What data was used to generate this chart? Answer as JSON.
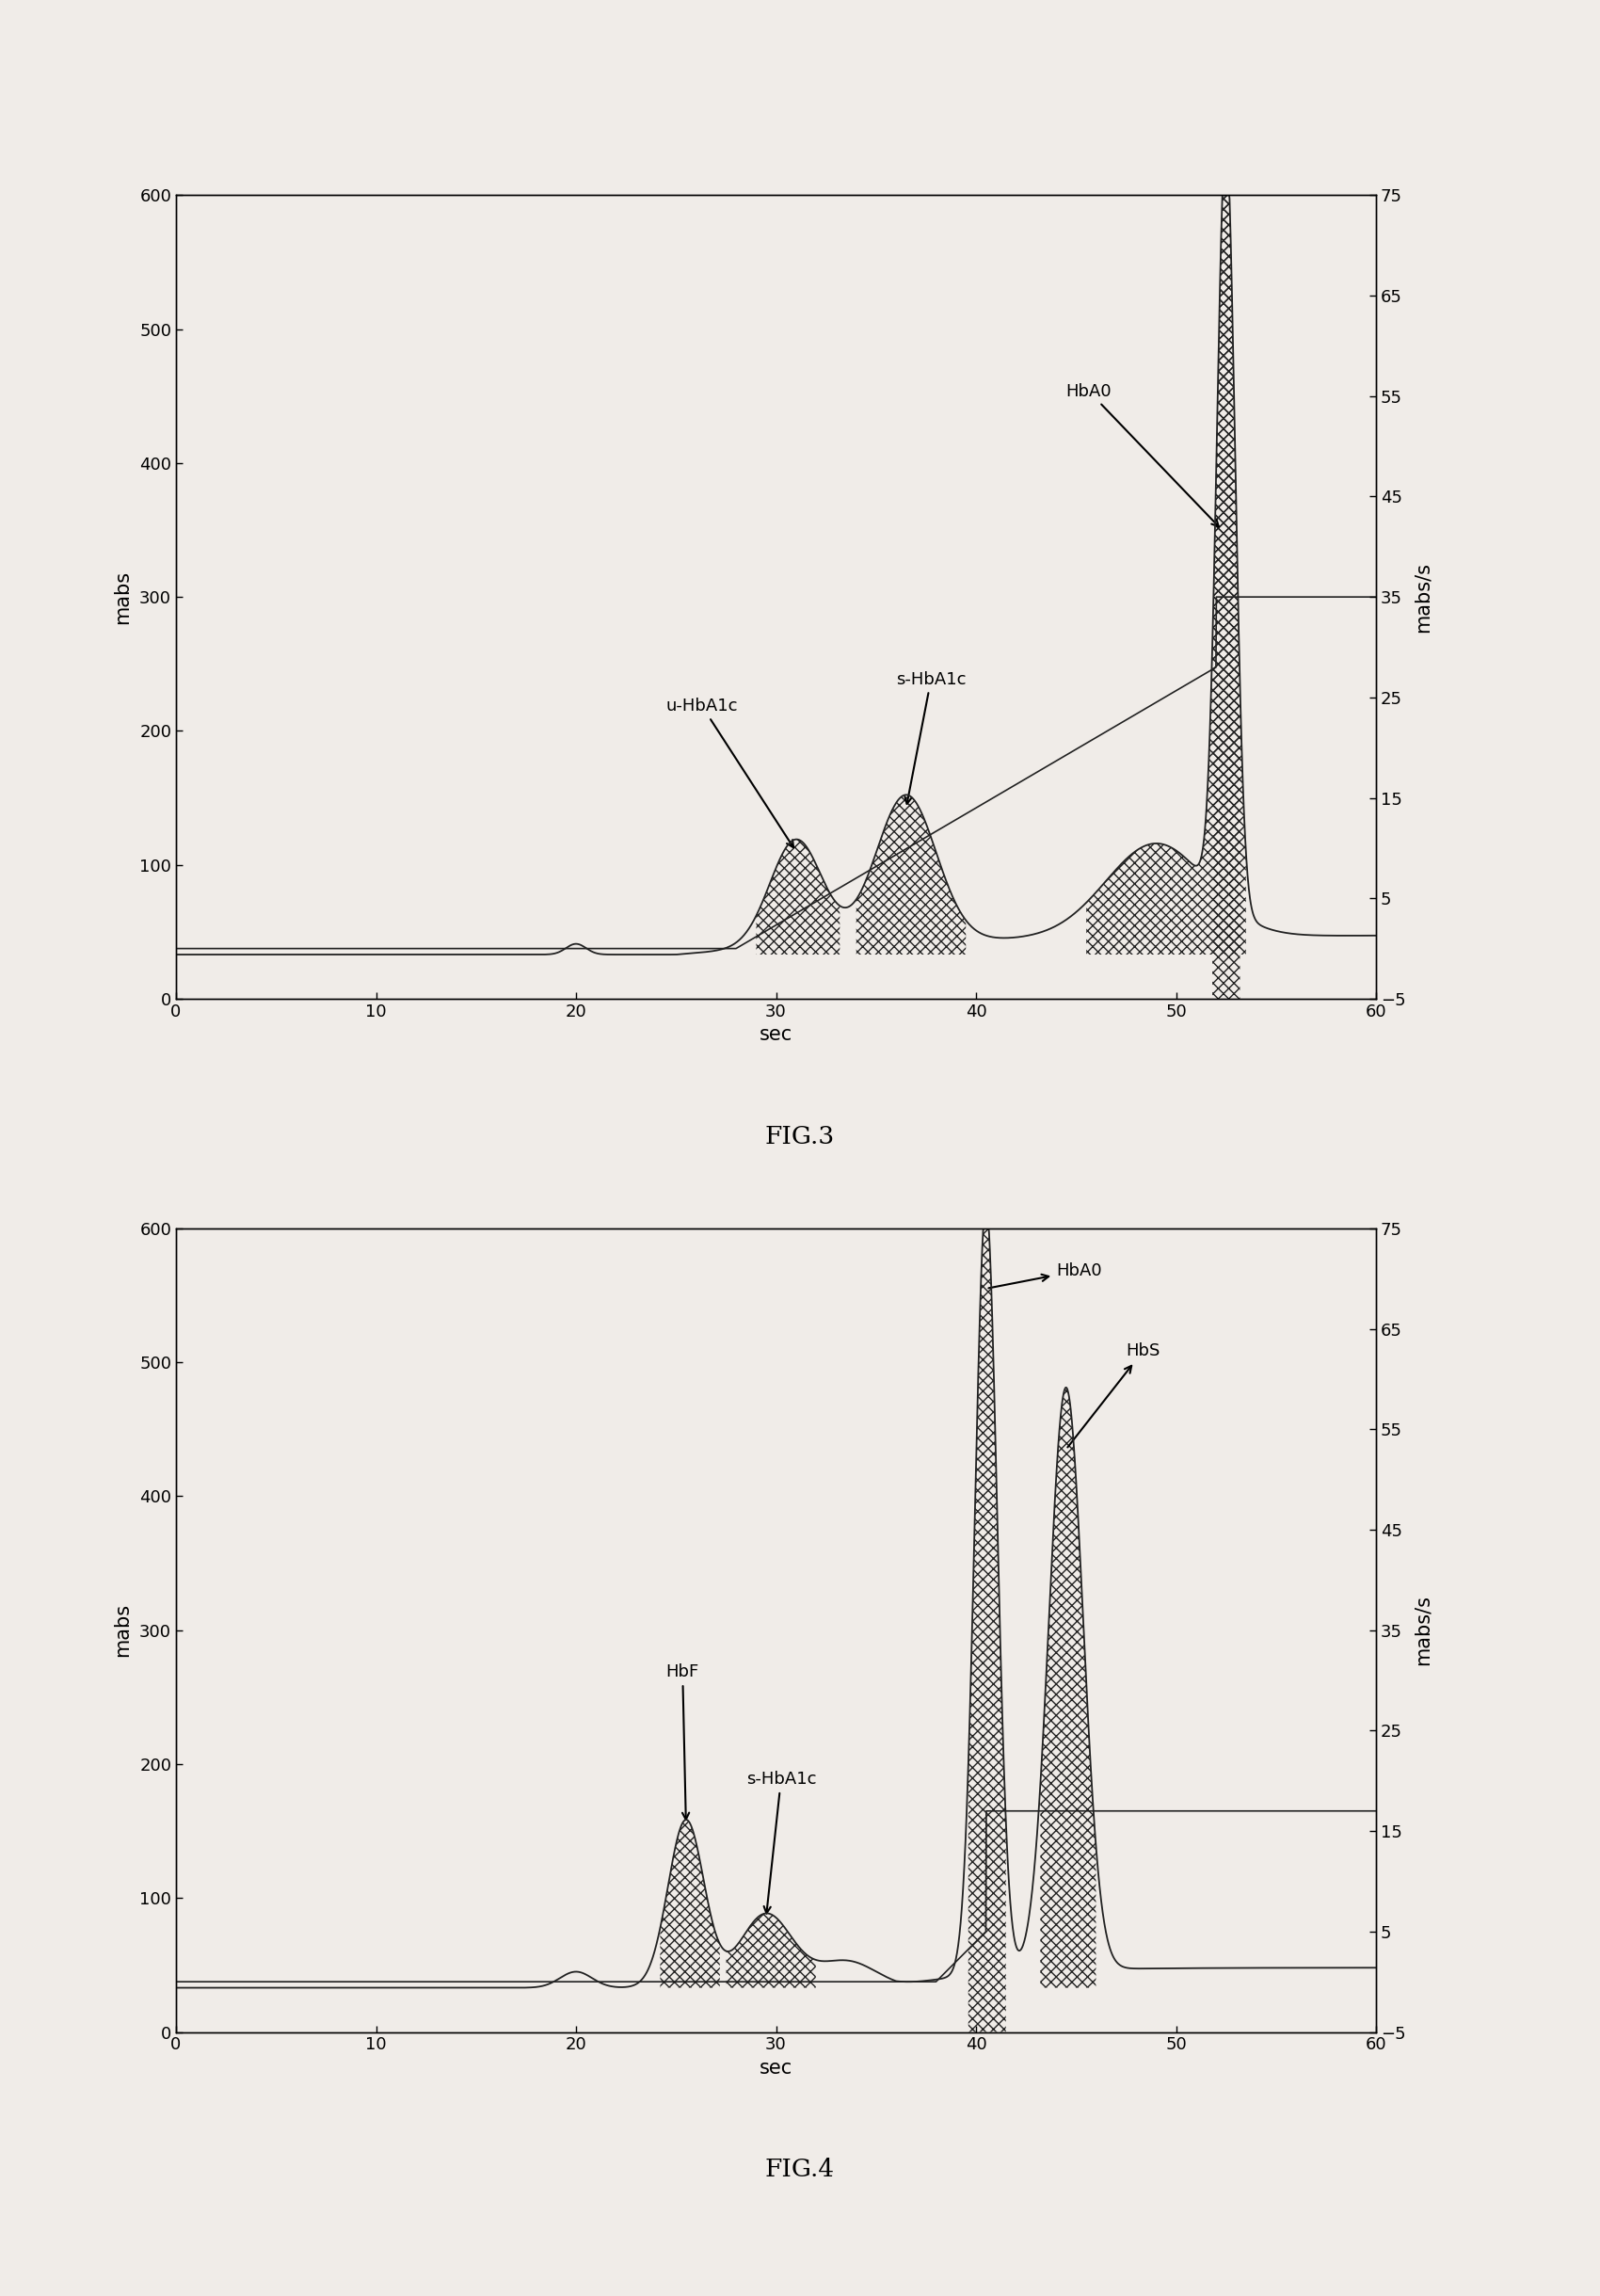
{
  "fig3": {
    "title": "FIG.3",
    "xlabel": "sec",
    "ylabel_left": "mabs",
    "ylabel_right": "mabs/s",
    "xlim": [
      0,
      60
    ],
    "ylim_left": [
      0,
      600
    ],
    "ylim_right": [
      -5,
      75
    ],
    "xticks": [
      0,
      10,
      20,
      30,
      40,
      50,
      60
    ],
    "yticks_left": [
      0,
      100,
      200,
      300,
      400,
      500,
      600
    ],
    "yticks_right": [
      -5,
      5,
      15,
      25,
      35,
      45,
      55,
      65,
      75
    ]
  },
  "fig4": {
    "title": "FIG.4",
    "xlabel": "sec",
    "ylabel_left": "mabs",
    "ylabel_right": "mabs/s",
    "xlim": [
      0,
      60
    ],
    "ylim_left": [
      0,
      600
    ],
    "ylim_right": [
      -5,
      75
    ],
    "xticks": [
      0,
      10,
      20,
      30,
      40,
      50,
      60
    ],
    "yticks_left": [
      0,
      100,
      200,
      300,
      400,
      500,
      600
    ],
    "yticks_right": [
      -5,
      5,
      15,
      25,
      35,
      45,
      55,
      65,
      75
    ]
  },
  "line_color_dark": "#222222",
  "line_color_gray": "#555555",
  "background": "#f0ece8",
  "plot_bg": "#f0ece8"
}
